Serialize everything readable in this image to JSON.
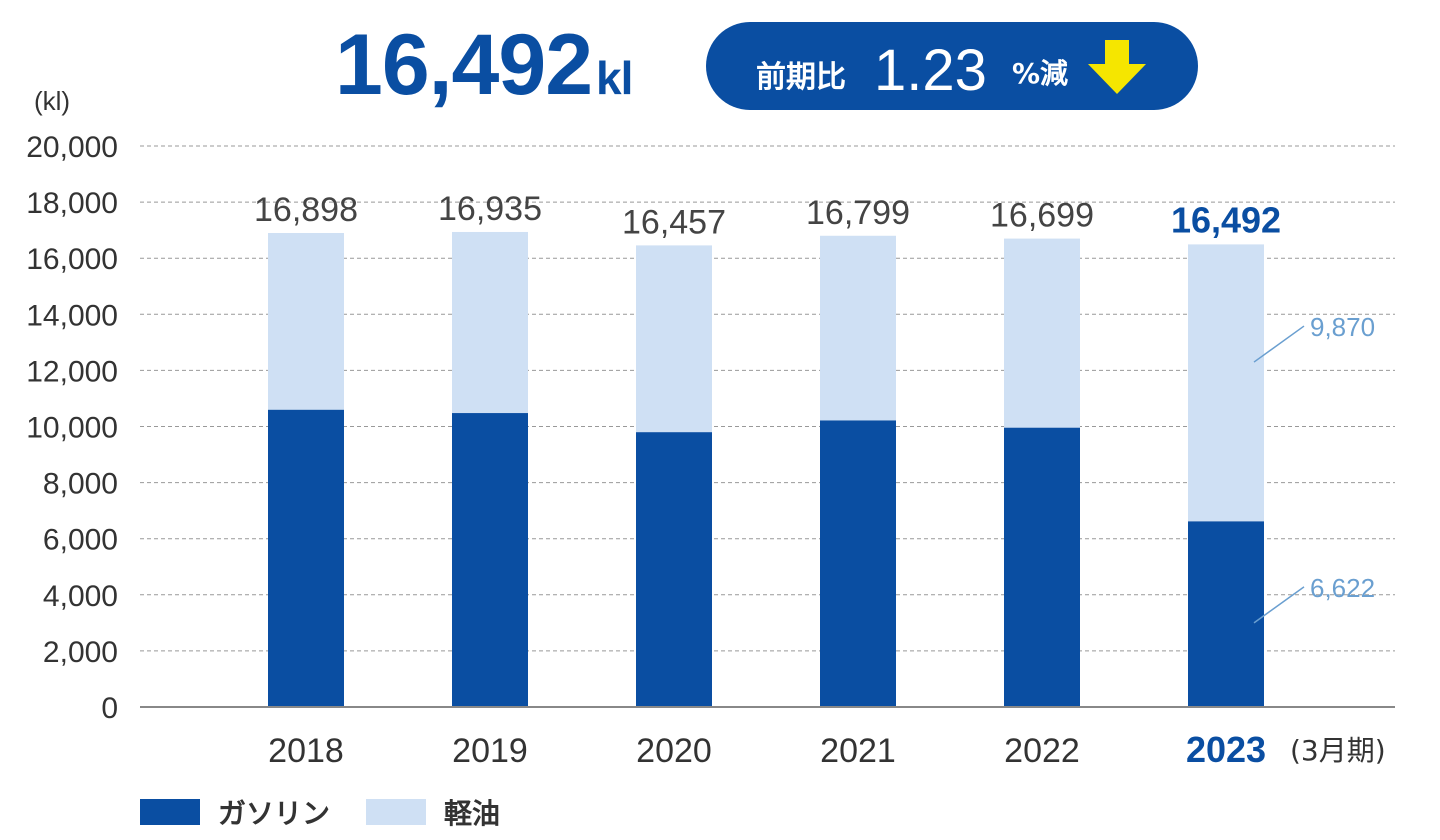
{
  "headline": {
    "value": "16,492",
    "unit": "kl"
  },
  "badge": {
    "label": "前期比",
    "value": "1.23",
    "suffix": "%減",
    "arrow_icon": "down-arrow-icon",
    "arrow_color": "#f5e600"
  },
  "colors": {
    "gasoline": "#0a4ea2",
    "diesel": "#cfe0f4",
    "accent": "#0a4ea2",
    "gridline": "#999999",
    "text": "#333333",
    "callout": "#6a9fd0"
  },
  "chart_data": {
    "type": "bar",
    "stacked": true,
    "ylabel": "(kl)",
    "ylim": [
      0,
      20000
    ],
    "yticks": [
      "0",
      "2,000",
      "4,000",
      "6,000",
      "8,000",
      "10,000",
      "12,000",
      "14,000",
      "16,000",
      "18,000",
      "20,000"
    ],
    "categories": [
      "2018",
      "2019",
      "2020",
      "2021",
      "2022",
      "2023"
    ],
    "x_suffix": "(3月期)",
    "highlight_index": 5,
    "totals": [
      16898,
      16935,
      16457,
      16799,
      16699,
      16492
    ],
    "total_labels": [
      "16,898",
      "16,935",
      "16,457",
      "16,799",
      "16,699",
      "16,492"
    ],
    "series": [
      {
        "name": "ガソリン",
        "values": [
          10600,
          10480,
          9800,
          10220,
          9960,
          6622
        ]
      },
      {
        "name": "軽油",
        "values": [
          6298,
          6455,
          6657,
          6579,
          6739,
          9870
        ]
      }
    ],
    "annotations": [
      {
        "category": "2023",
        "series": "軽油",
        "text": "9,870"
      },
      {
        "category": "2023",
        "series": "ガソリン",
        "text": "6,622"
      }
    ],
    "grid": true,
    "legend_position": "bottom-left"
  }
}
